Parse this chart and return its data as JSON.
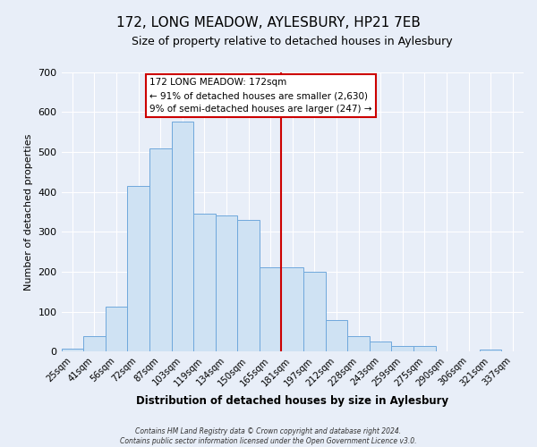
{
  "title": "172, LONG MEADOW, AYLESBURY, HP21 7EB",
  "subtitle": "Size of property relative to detached houses in Aylesbury",
  "xlabel": "Distribution of detached houses by size in Aylesbury",
  "ylabel": "Number of detached properties",
  "bar_labels": [
    "25sqm",
    "41sqm",
    "56sqm",
    "72sqm",
    "87sqm",
    "103sqm",
    "119sqm",
    "134sqm",
    "150sqm",
    "165sqm",
    "181sqm",
    "197sqm",
    "212sqm",
    "228sqm",
    "243sqm",
    "259sqm",
    "275sqm",
    "290sqm",
    "306sqm",
    "321sqm",
    "337sqm"
  ],
  "bar_values": [
    8,
    38,
    112,
    415,
    508,
    575,
    345,
    340,
    330,
    212,
    210,
    200,
    78,
    38,
    25,
    13,
    13,
    0,
    0,
    5,
    0
  ],
  "bar_color": "#cfe2f3",
  "bar_edge_color": "#6fa8dc",
  "vline_color": "#cc0000",
  "annotation_title": "172 LONG MEADOW: 172sqm",
  "annotation_line1": "← 91% of detached houses are smaller (2,630)",
  "annotation_line2": "9% of semi-detached houses are larger (247) →",
  "annotation_box_facecolor": "#ffffff",
  "annotation_box_edgecolor": "#cc0000",
  "ylim": [
    0,
    700
  ],
  "yticks": [
    0,
    100,
    200,
    300,
    400,
    500,
    600,
    700
  ],
  "background_color": "#e8eef8",
  "grid_color": "#ffffff",
  "footer1": "Contains HM Land Registry data © Crown copyright and database right 2024.",
  "footer2": "Contains public sector information licensed under the Open Government Licence v3.0.",
  "title_fontsize": 11,
  "subtitle_fontsize": 9
}
